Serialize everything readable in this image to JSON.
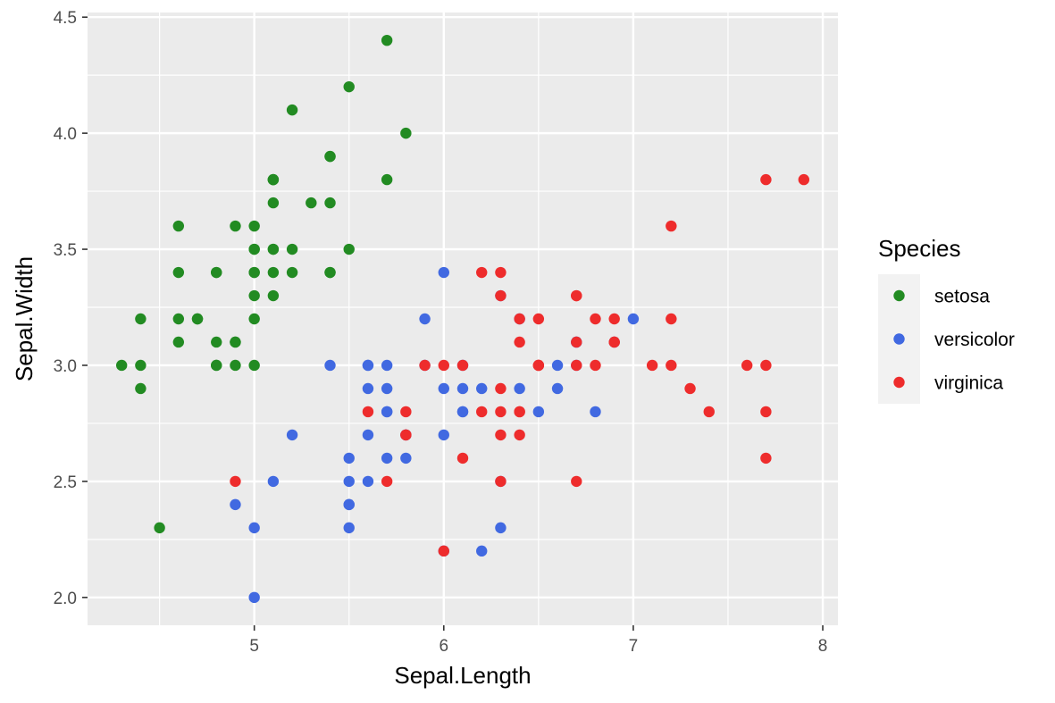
{
  "chart_data": {
    "type": "scatter",
    "xlabel": "Sepal.Length",
    "ylabel": "Sepal.Width",
    "xlim": [
      4.12,
      8.08
    ],
    "ylim": [
      1.88,
      4.52
    ],
    "x_ticks": [
      5,
      6,
      7,
      8
    ],
    "y_ticks": [
      2.0,
      2.5,
      3.0,
      3.5,
      4.0,
      4.5
    ],
    "x_tick_labels": [
      "5",
      "6",
      "7",
      "8"
    ],
    "y_tick_labels": [
      "2.0",
      "2.5",
      "3.0",
      "3.5",
      "4.0",
      "4.5"
    ],
    "grid": true,
    "legend": {
      "title": "Species",
      "position": "right"
    },
    "series": [
      {
        "name": "setosa",
        "color": "#228b22",
        "points": [
          [
            5.1,
            3.5
          ],
          [
            4.9,
            3.0
          ],
          [
            4.7,
            3.2
          ],
          [
            4.6,
            3.1
          ],
          [
            5.0,
            3.6
          ],
          [
            5.4,
            3.9
          ],
          [
            4.6,
            3.4
          ],
          [
            5.0,
            3.4
          ],
          [
            4.4,
            2.9
          ],
          [
            4.9,
            3.1
          ],
          [
            5.4,
            3.7
          ],
          [
            4.8,
            3.4
          ],
          [
            4.8,
            3.0
          ],
          [
            4.3,
            3.0
          ],
          [
            5.8,
            4.0
          ],
          [
            5.7,
            4.4
          ],
          [
            5.4,
            3.9
          ],
          [
            5.1,
            3.5
          ],
          [
            5.7,
            3.8
          ],
          [
            5.1,
            3.8
          ],
          [
            5.4,
            3.4
          ],
          [
            5.1,
            3.7
          ],
          [
            4.6,
            3.6
          ],
          [
            5.1,
            3.3
          ],
          [
            4.8,
            3.4
          ],
          [
            5.0,
            3.0
          ],
          [
            5.0,
            3.4
          ],
          [
            5.2,
            3.5
          ],
          [
            5.2,
            3.4
          ],
          [
            4.7,
            3.2
          ],
          [
            4.8,
            3.1
          ],
          [
            5.4,
            3.4
          ],
          [
            5.2,
            4.1
          ],
          [
            5.5,
            4.2
          ],
          [
            4.9,
            3.1
          ],
          [
            5.0,
            3.2
          ],
          [
            5.5,
            3.5
          ],
          [
            4.9,
            3.6
          ],
          [
            4.4,
            3.0
          ],
          [
            5.1,
            3.4
          ],
          [
            5.0,
            3.5
          ],
          [
            4.5,
            2.3
          ],
          [
            4.4,
            3.2
          ],
          [
            5.0,
            3.5
          ],
          [
            5.1,
            3.8
          ],
          [
            4.8,
            3.0
          ],
          [
            5.1,
            3.8
          ],
          [
            4.6,
            3.2
          ],
          [
            5.3,
            3.7
          ],
          [
            5.0,
            3.3
          ]
        ]
      },
      {
        "name": "versicolor",
        "color": "#4169e1",
        "points": [
          [
            7.0,
            3.2
          ],
          [
            6.4,
            3.2
          ],
          [
            6.9,
            3.1
          ],
          [
            5.5,
            2.3
          ],
          [
            6.5,
            2.8
          ],
          [
            5.7,
            2.8
          ],
          [
            6.3,
            3.3
          ],
          [
            4.9,
            2.4
          ],
          [
            6.6,
            2.9
          ],
          [
            5.2,
            2.7
          ],
          [
            5.0,
            2.0
          ],
          [
            5.9,
            3.0
          ],
          [
            6.0,
            2.2
          ],
          [
            6.1,
            2.9
          ],
          [
            5.6,
            2.9
          ],
          [
            6.7,
            3.1
          ],
          [
            5.6,
            3.0
          ],
          [
            5.8,
            2.7
          ],
          [
            6.2,
            2.2
          ],
          [
            5.6,
            2.5
          ],
          [
            5.9,
            3.2
          ],
          [
            6.1,
            2.8
          ],
          [
            6.3,
            2.5
          ],
          [
            6.1,
            2.8
          ],
          [
            6.4,
            2.9
          ],
          [
            6.6,
            3.0
          ],
          [
            6.8,
            2.8
          ],
          [
            6.7,
            3.0
          ],
          [
            6.0,
            2.9
          ],
          [
            5.7,
            2.6
          ],
          [
            5.5,
            2.4
          ],
          [
            5.5,
            2.4
          ],
          [
            5.8,
            2.7
          ],
          [
            6.0,
            2.7
          ],
          [
            5.4,
            3.0
          ],
          [
            6.0,
            3.4
          ],
          [
            6.7,
            3.1
          ],
          [
            6.3,
            2.3
          ],
          [
            5.6,
            3.0
          ],
          [
            5.5,
            2.5
          ],
          [
            5.5,
            2.6
          ],
          [
            6.1,
            3.0
          ],
          [
            5.8,
            2.6
          ],
          [
            5.0,
            2.3
          ],
          [
            5.6,
            2.7
          ],
          [
            5.7,
            3.0
          ],
          [
            5.7,
            2.9
          ],
          [
            6.2,
            2.9
          ],
          [
            5.1,
            2.5
          ],
          [
            5.7,
            2.8
          ]
        ]
      },
      {
        "name": "virginica",
        "color": "#ee2c2c",
        "points": [
          [
            6.3,
            3.3
          ],
          [
            5.8,
            2.7
          ],
          [
            7.1,
            3.0
          ],
          [
            6.3,
            2.9
          ],
          [
            6.5,
            3.0
          ],
          [
            7.6,
            3.0
          ],
          [
            4.9,
            2.5
          ],
          [
            7.3,
            2.9
          ],
          [
            6.7,
            2.5
          ],
          [
            7.2,
            3.6
          ],
          [
            6.5,
            3.2
          ],
          [
            6.4,
            2.7
          ],
          [
            6.8,
            3.0
          ],
          [
            5.7,
            2.5
          ],
          [
            5.8,
            2.8
          ],
          [
            6.4,
            3.2
          ],
          [
            6.5,
            3.0
          ],
          [
            7.7,
            3.8
          ],
          [
            7.7,
            2.6
          ],
          [
            6.0,
            2.2
          ],
          [
            6.9,
            3.2
          ],
          [
            5.6,
            2.8
          ],
          [
            7.7,
            2.8
          ],
          [
            6.3,
            2.7
          ],
          [
            6.7,
            3.3
          ],
          [
            7.2,
            3.2
          ],
          [
            6.2,
            2.8
          ],
          [
            6.1,
            3.0
          ],
          [
            6.4,
            2.8
          ],
          [
            7.2,
            3.0
          ],
          [
            7.4,
            2.8
          ],
          [
            7.9,
            3.8
          ],
          [
            6.4,
            2.8
          ],
          [
            6.3,
            2.8
          ],
          [
            6.1,
            2.6
          ],
          [
            7.7,
            3.0
          ],
          [
            6.3,
            3.4
          ],
          [
            6.4,
            3.1
          ],
          [
            6.0,
            3.0
          ],
          [
            6.9,
            3.1
          ],
          [
            6.7,
            3.1
          ],
          [
            6.9,
            3.1
          ],
          [
            5.8,
            2.7
          ],
          [
            6.8,
            3.2
          ],
          [
            6.7,
            3.3
          ],
          [
            6.7,
            3.0
          ],
          [
            6.3,
            2.5
          ],
          [
            6.5,
            3.0
          ],
          [
            6.2,
            3.4
          ],
          [
            5.9,
            3.0
          ]
        ]
      }
    ]
  }
}
